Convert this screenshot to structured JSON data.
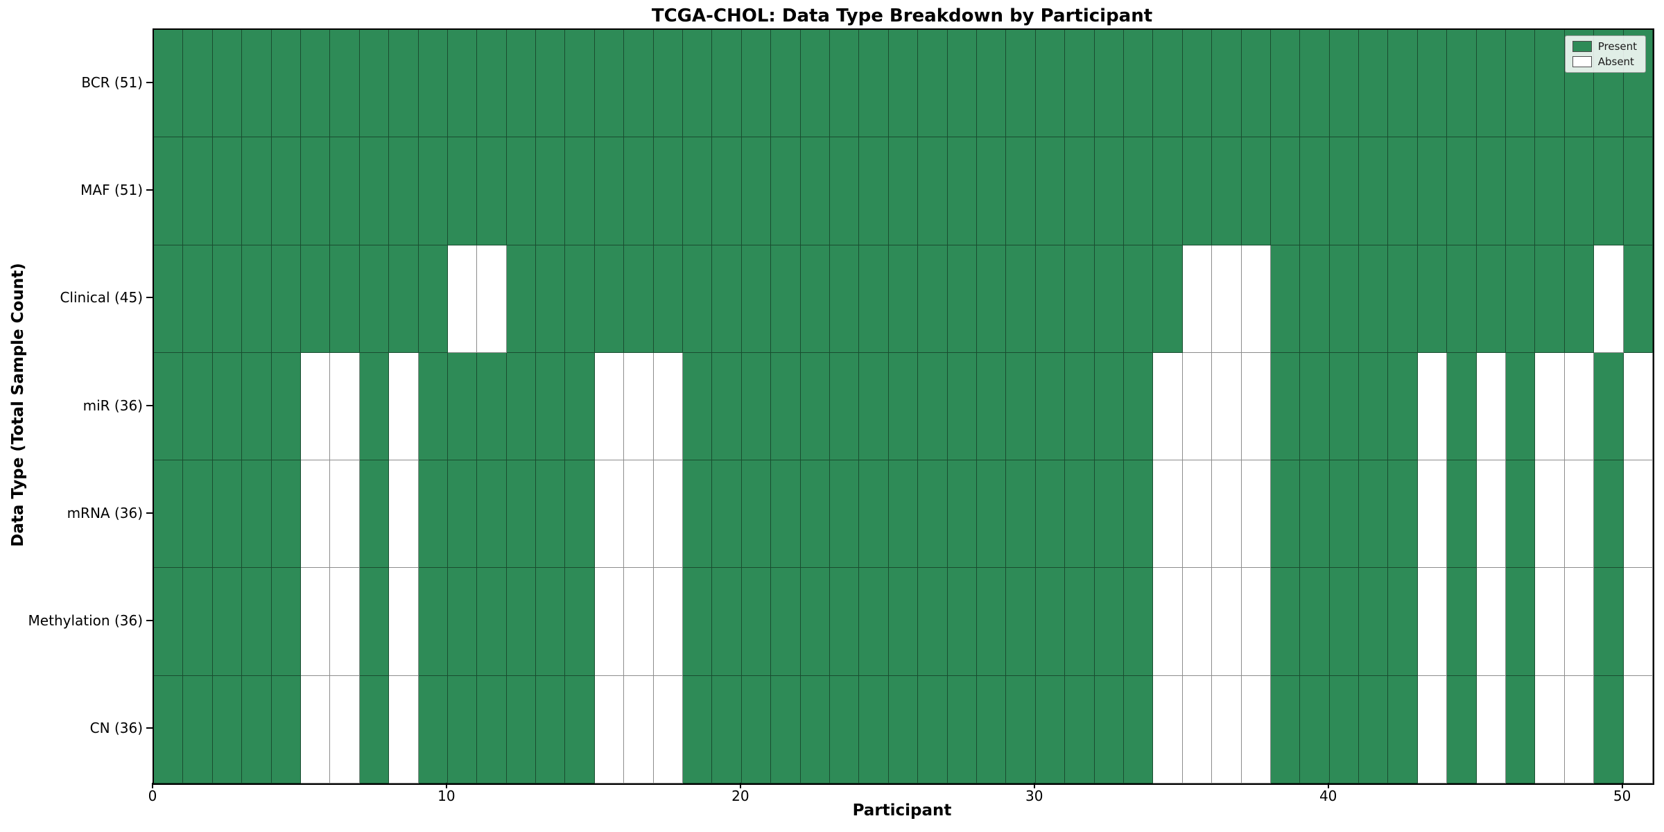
{
  "title": "TCGA-CHOL: Data Type Breakdown by Participant",
  "xlabel": "Participant",
  "ylabel": "Data Type (Total Sample Count)",
  "legend": {
    "present_label": "Present",
    "absent_label": "Absent"
  },
  "colors": {
    "present": "#2e8b57",
    "absent": "#ffffff",
    "grid": "rgba(0,0,0,0.45)",
    "spine": "#000000"
  },
  "x_ticks": [
    0,
    10,
    20,
    30,
    40,
    50
  ],
  "chart_data": {
    "type": "heatmap",
    "title": "TCGA-CHOL: Data Type Breakdown by Participant",
    "xlabel": "Participant",
    "ylabel": "Data Type (Total Sample Count)",
    "x_range": [
      0,
      51
    ],
    "n_participants": 51,
    "grid": true,
    "legend_position": "upper right",
    "cell_values_meaning": "1 = Present (green), 0 = Absent (white)",
    "rows": [
      {
        "label": "BCR (51)",
        "data_type": "BCR",
        "present_count": 51,
        "absent_participants": []
      },
      {
        "label": "MAF (51)",
        "data_type": "MAF",
        "present_count": 51,
        "absent_participants": []
      },
      {
        "label": "Clinical (45)",
        "data_type": "Clinical",
        "present_count": 45,
        "absent_participants": [
          10,
          11,
          35,
          36,
          37,
          49
        ]
      },
      {
        "label": "miR (36)",
        "data_type": "miR",
        "present_count": 36,
        "absent_participants": [
          5,
          6,
          8,
          15,
          16,
          17,
          34,
          35,
          36,
          37,
          43,
          45,
          47,
          48,
          50
        ]
      },
      {
        "label": "mRNA (36)",
        "data_type": "mRNA",
        "present_count": 36,
        "absent_participants": [
          5,
          6,
          8,
          15,
          16,
          17,
          34,
          35,
          36,
          37,
          43,
          45,
          47,
          48,
          50
        ]
      },
      {
        "label": "Methylation (36)",
        "data_type": "Methylation",
        "present_count": 36,
        "absent_participants": [
          5,
          6,
          8,
          15,
          16,
          17,
          34,
          35,
          36,
          37,
          43,
          45,
          47,
          48,
          50
        ]
      },
      {
        "label": "CN (36)",
        "data_type": "CN",
        "present_count": 36,
        "absent_participants": [
          5,
          6,
          8,
          15,
          16,
          17,
          34,
          35,
          36,
          37,
          43,
          45,
          47,
          48,
          50
        ]
      }
    ]
  }
}
